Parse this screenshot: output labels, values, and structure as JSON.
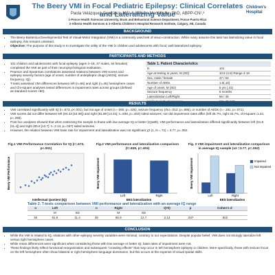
{
  "header": {
    "title": "The Beery VMI in Focal Pediatric Epilepsy: Clinical Correlates and Lateralizing Value",
    "authors": "Paola Velázquez-González, MS¹ & William MacAllister, PhD, ABPP-CN²,³",
    "affiliations": [
      "1-Ponce Health Sciences University, Brain and Behavioral Science Department, Ponce Puerto Rico",
      "2-Alberta Health Services & 3-Alberta Children's Hospital Research Institute, Calgary, AB, Canada"
    ],
    "logo_right": [
      "Children's",
      "Hospital"
    ]
  },
  "background": {
    "heading": "BACKGROUND",
    "bullets": [
      {
        "text": "The Beery-Buktenica Developmental Test of Visual-Motor Integration (VMI) is a commonly used test of visuo-construction. While many assume this task has lateralizing value in focal epilepsy, this remains untested."
      },
      {
        "label": "Objective:",
        "text": "The purpose of this study is to investigate the utility of the VMI in children and adolescents with focal, well-lateralized epilepsy."
      }
    ]
  },
  "methods": {
    "heading": "PARTICIPANTS AND METHODS",
    "bullets": [
      {
        "text": "101 children and adolescents with focal epilepsy (ages 4–18, 47 males, 54 females) completed the VMI as part of their neuropsychological evaluation."
      },
      {
        "text": "Pearson and Spearman correlations assessed relations between VMI scores and epilepsy severity factors (age of onset, number of antiepileptic drugs [AEDs], seizure frequency, IQ)."
      },
      {
        "text": "T-tests assessed VMI differences between left (n=56) and right (n=45) hemisphere cases and Chi-square analyses tested differences in impairment rates across groups (defined as standard scores <80)."
      }
    ],
    "table1": {
      "title": "Table 1. Patient Characteristics",
      "rows": [
        [
          "N",
          "101"
        ],
        [
          "Age at testing in years, M (SD)",
          "10.5 (3.8)  Range 4-18"
        ],
        [
          "Sex, male / female",
          "47 / 54"
        ],
        [
          "Number of AEDs",
          "1.6(.10)"
        ],
        [
          "Age of onset, M (SD)",
          "5 yrs (.41)"
        ],
        [
          "Seizure frequency",
          "6 months"
        ],
        [
          "Lateralization Left/Right",
          "56 / 45"
        ],
        [
          "Intellectual Quotient range",
          "SS: 40-123"
        ]
      ]
    }
  },
  "results": {
    "heading": "RESULTS",
    "bullets": [
      {
        "text": "VMI correlated significantly with IQ (r=.673, p<.001), but not age of onset (r=-.060, p=.426), seizure frequency (rho=.013, p=.895), or number of AEDs (r=-.181, p=.071)."
      },
      {
        "text": "VMI scores did not differ between left (84.43 [16.06]) and right (81.89 [14.31]; t=.839, p=.403) sided seizures, nor did impairment rates differ (left 35.7%, right 46.7%, chi-square=1.24, p=.265)."
      },
      {
        "text": "Post hoc analyses showed that when restricting the sample to those with low average IQ or better (IQ≥80), VMI performance and lateralization differed significantly between left (91.9 [11.4]) and right (85.9 [12.7]; t= 2.13, p=.037) sided seizures."
      },
      {
        "text": "However, the relation between VMI base rate for impairment and lateralization was not significant χ2 (1, N = 72) = 3.77, p=.052."
      }
    ],
    "figures": [
      {
        "type": "scatter",
        "title": "Fig.1 VMI Performance Correlation for IQ (r=.673, p<.001)",
        "x_label": "Intellectual Quotient (IQ)",
        "y_label": "Beery VMI Performance",
        "xlim": [
          40,
          140
        ],
        "ylim": [
          40,
          140
        ],
        "color": "#4472c4",
        "x": [
          48,
          55,
          60,
          64,
          68,
          72,
          75,
          78,
          80,
          83,
          85,
          88,
          90,
          92,
          95,
          97,
          100,
          103,
          106,
          110,
          114,
          118,
          122
        ],
        "y": [
          55,
          60,
          58,
          70,
          66,
          72,
          80,
          74,
          78,
          85,
          82,
          80,
          88,
          92,
          86,
          95,
          90,
          98,
          94,
          100,
          104,
          99,
          110
        ]
      },
      {
        "type": "bar",
        "title": "Fig.2 VMI performance and lateralization comparison (t=.839, p=.403)",
        "x_label": "EEG lateralization",
        "y_label": "Beery VMI Impairment",
        "categories": [
          "Left",
          "Right"
        ],
        "values": [
          84.43,
          81.89
        ],
        "ylim": [
          0,
          100
        ],
        "color": "#2f5597"
      },
      {
        "type": "grouped_bar",
        "title": "Fig. 3  VMI impairment and lateralization comparison in average IQ sample (x2 =3.77, p=.052)",
        "x_label": "EEG lateralization",
        "y_label": "Beery VMI Impairment",
        "categories": [
          "Left",
          "Right"
        ],
        "ylim": [
          0,
          30
        ],
        "series": [
          {
            "name": "Impaired",
            "color": "#2f5597",
            "values": [
              8,
              15
            ]
          },
          {
            "name": "Not impaired",
            "color": "#bdd7ee",
            "values": [
              28,
              21
            ]
          }
        ]
      }
    ],
    "table2": {
      "title": "Table 2. T-tests comparison between VMI performance and lateralization with an average IQ range",
      "header": [
        "n",
        "Left",
        "",
        "n",
        "Right",
        "",
        "t(70)",
        "p",
        "Cohen's d"
      ],
      "subheader": [
        "",
        "M",
        "SD",
        "",
        "M",
        "SD",
        "",
        "",
        ""
      ],
      "rows": [
        [
          "36",
          "91.9",
          "11.4",
          "36",
          "85.9",
          "12.7",
          "2.13",
          ".037",
          ".502"
        ]
      ]
    }
  },
  "conclusion": {
    "heading": "CONCLUSION",
    "bullets": [
      {
        "text": "While the VMI is related to IQ, relations with other epilepsy severity variables were minimal, contrary to our expectations. Despite popular belief, VMI does not strongly lateralize left versus right hemisphere cases."
      },
      {
        "text": "While mean differences were significant when considering those with low average or better IQ, base rates of impairment were not."
      },
      {
        "text": "These findings likely reflect functional reorganization and subsequent \"crowding effects\" that may occur in left hemisphere epilepsy in children. More specifically, those with seizure focus on the left hemisphere often show bilateral or right hemisphere language dominance, but this occurs at the expense of visual spatial skills."
      }
    ]
  }
}
